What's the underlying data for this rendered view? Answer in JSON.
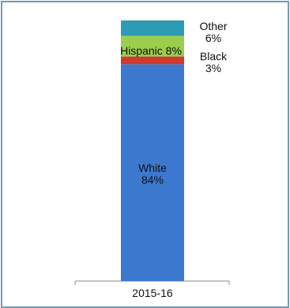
{
  "chart_data": {
    "type": "bar",
    "stacked": true,
    "categories": [
      "2015-16"
    ],
    "series": [
      {
        "name": "White",
        "values": [
          84
        ],
        "value_label": "84%",
        "color": "#3d78cf"
      },
      {
        "name": "Black",
        "values": [
          3
        ],
        "value_label": "3%",
        "color": "#cf3a2a"
      },
      {
        "name": "Hispanic",
        "values": [
          8
        ],
        "value_label": "8%",
        "color": "#9ccd4c"
      },
      {
        "name": "Other",
        "values": [
          6
        ],
        "value_label": "6%",
        "color": "#2e9bb5"
      }
    ],
    "ylim": [
      0,
      100
    ],
    "grid": false,
    "legend": "none"
  }
}
